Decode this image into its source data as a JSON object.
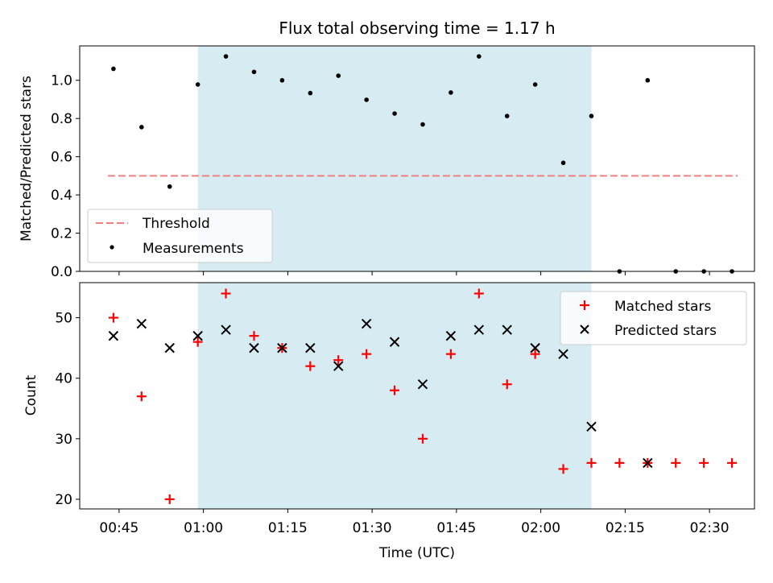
{
  "chart_data": [
    {
      "type": "scatter",
      "title": "Flux total observing time = 1.17 h",
      "ylabel": "Matched/Predicted stars",
      "xlabel": "",
      "x_range": [
        "00:38",
        "02:38"
      ],
      "ylim": [
        0,
        1.18
      ],
      "yticks": [
        "0.0",
        "0.2",
        "0.4",
        "0.6",
        "0.8",
        "1.0"
      ],
      "ytick_values": [
        0,
        0.2,
        0.4,
        0.6,
        0.8,
        1.0
      ],
      "shaded_region": {
        "start": "00:59",
        "end": "02:09",
        "color": "#add8e6"
      },
      "threshold": {
        "name": "Threshold",
        "value": 0.5,
        "x_start": "00:43",
        "x_end": "02:35",
        "color": "#f08080",
        "style": "dashed"
      },
      "series": [
        {
          "name": "Measurements",
          "color": "#000000",
          "marker": "dot",
          "points": [
            {
              "x": "00:44",
              "y": 1.06
            },
            {
              "x": "00:49",
              "y": 0.755
            },
            {
              "x": "00:54",
              "y": 0.444
            },
            {
              "x": "00:59",
              "y": 0.978
            },
            {
              "x": "01:04",
              "y": 1.125
            },
            {
              "x": "01:09",
              "y": 1.044
            },
            {
              "x": "01:14",
              "y": 1.0
            },
            {
              "x": "01:19",
              "y": 0.933
            },
            {
              "x": "01:24",
              "y": 1.024
            },
            {
              "x": "01:29",
              "y": 0.898
            },
            {
              "x": "01:34",
              "y": 0.826
            },
            {
              "x": "01:39",
              "y": 0.769
            },
            {
              "x": "01:44",
              "y": 0.936
            },
            {
              "x": "01:49",
              "y": 1.125
            },
            {
              "x": "01:54",
              "y": 0.813
            },
            {
              "x": "01:59",
              "y": 0.978
            },
            {
              "x": "02:04",
              "y": 0.568
            },
            {
              "x": "02:09",
              "y": 0.813
            },
            {
              "x": "02:14",
              "y": 0.0
            },
            {
              "x": "02:19",
              "y": 1.0
            },
            {
              "x": "02:24",
              "y": 0.0
            },
            {
              "x": "02:29",
              "y": 0.0
            },
            {
              "x": "02:34",
              "y": 0.0
            }
          ]
        }
      ],
      "legend": {
        "placement": "lower-left",
        "entries": [
          "Threshold",
          "Measurements"
        ]
      }
    },
    {
      "type": "scatter",
      "title": "",
      "ylabel": "Count",
      "xlabel": "Time (UTC)",
      "x_range": [
        "00:38",
        "02:38"
      ],
      "xticks": [
        "00:45",
        "01:00",
        "01:15",
        "01:30",
        "01:45",
        "02:00",
        "02:15",
        "02:30"
      ],
      "ylim": [
        18.4,
        55.8
      ],
      "yticks": [
        "20",
        "30",
        "40",
        "50"
      ],
      "ytick_values": [
        20,
        30,
        40,
        50
      ],
      "shaded_region": {
        "start": "00:59",
        "end": "02:09",
        "color": "#add8e6"
      },
      "series": [
        {
          "name": "Matched stars",
          "color": "#ff0000",
          "marker": "plus",
          "points": [
            {
              "x": "00:44",
              "y": 50
            },
            {
              "x": "00:49",
              "y": 37
            },
            {
              "x": "00:54",
              "y": 20
            },
            {
              "x": "00:59",
              "y": 46
            },
            {
              "x": "01:04",
              "y": 54
            },
            {
              "x": "01:09",
              "y": 47
            },
            {
              "x": "01:14",
              "y": 45
            },
            {
              "x": "01:19",
              "y": 42
            },
            {
              "x": "01:24",
              "y": 43
            },
            {
              "x": "01:29",
              "y": 44
            },
            {
              "x": "01:34",
              "y": 38
            },
            {
              "x": "01:39",
              "y": 30
            },
            {
              "x": "01:44",
              "y": 44
            },
            {
              "x": "01:49",
              "y": 54
            },
            {
              "x": "01:54",
              "y": 39
            },
            {
              "x": "01:59",
              "y": 44
            },
            {
              "x": "02:04",
              "y": 25
            },
            {
              "x": "02:09",
              "y": 26
            },
            {
              "x": "02:14",
              "y": 26
            },
            {
              "x": "02:19",
              "y": 26
            },
            {
              "x": "02:24",
              "y": 26
            },
            {
              "x": "02:29",
              "y": 26
            },
            {
              "x": "02:34",
              "y": 26
            }
          ]
        },
        {
          "name": "Predicted stars",
          "color": "#000000",
          "marker": "x",
          "points": [
            {
              "x": "00:44",
              "y": 47
            },
            {
              "x": "00:49",
              "y": 49
            },
            {
              "x": "00:54",
              "y": 45
            },
            {
              "x": "00:59",
              "y": 47
            },
            {
              "x": "01:04",
              "y": 48
            },
            {
              "x": "01:09",
              "y": 45
            },
            {
              "x": "01:14",
              "y": 45
            },
            {
              "x": "01:19",
              "y": 45
            },
            {
              "x": "01:24",
              "y": 42
            },
            {
              "x": "01:29",
              "y": 49
            },
            {
              "x": "01:34",
              "y": 46
            },
            {
              "x": "01:39",
              "y": 39
            },
            {
              "x": "01:44",
              "y": 47
            },
            {
              "x": "01:49",
              "y": 48
            },
            {
              "x": "01:54",
              "y": 48
            },
            {
              "x": "01:59",
              "y": 45
            },
            {
              "x": "02:04",
              "y": 44
            },
            {
              "x": "02:09",
              "y": 32
            },
            {
              "x": "02:19",
              "y": 26
            }
          ]
        }
      ],
      "legend": {
        "placement": "upper-right",
        "entries": [
          "Matched stars",
          "Predicted stars"
        ]
      }
    }
  ]
}
